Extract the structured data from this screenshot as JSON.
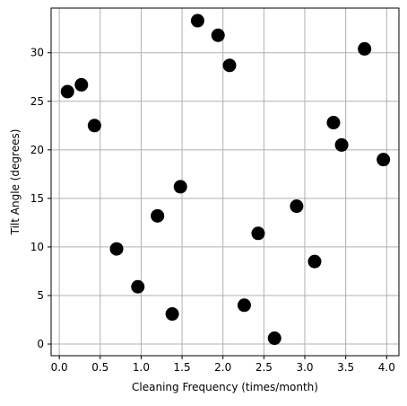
{
  "chart_data": {
    "type": "scatter",
    "title": "",
    "xlabel": "Cleaning Frequency (times/month)",
    "ylabel": "Tilt Angle (degrees)",
    "xlim": [
      -0.1,
      4.15
    ],
    "ylim": [
      -1.2,
      34.6
    ],
    "xticks": [
      0.0,
      0.5,
      1.0,
      1.5,
      2.0,
      2.5,
      3.0,
      3.5,
      4.0
    ],
    "xtick_labels": [
      "0.0",
      "0.5",
      "1.0",
      "1.5",
      "2.0",
      "2.5",
      "3.0",
      "3.5",
      "4.0"
    ],
    "yticks": [
      0,
      5,
      10,
      15,
      20,
      25,
      30
    ],
    "ytick_labels": [
      "0",
      "5",
      "10",
      "15",
      "20",
      "25",
      "30"
    ],
    "grid": true,
    "marker_color": "#000000",
    "points": [
      {
        "x": 0.1,
        "y": 26.0
      },
      {
        "x": 0.27,
        "y": 26.7
      },
      {
        "x": 0.43,
        "y": 22.5
      },
      {
        "x": 0.7,
        "y": 9.8
      },
      {
        "x": 0.96,
        "y": 5.9
      },
      {
        "x": 1.2,
        "y": 13.2
      },
      {
        "x": 1.38,
        "y": 3.1
      },
      {
        "x": 1.48,
        "y": 16.2
      },
      {
        "x": 1.69,
        "y": 33.3
      },
      {
        "x": 1.94,
        "y": 31.8
      },
      {
        "x": 2.08,
        "y": 28.7
      },
      {
        "x": 2.26,
        "y": 4.0
      },
      {
        "x": 2.43,
        "y": 11.4
      },
      {
        "x": 2.63,
        "y": 0.6
      },
      {
        "x": 2.9,
        "y": 14.2
      },
      {
        "x": 3.12,
        "y": 8.5
      },
      {
        "x": 3.35,
        "y": 22.8
      },
      {
        "x": 3.45,
        "y": 20.5
      },
      {
        "x": 3.73,
        "y": 30.4
      },
      {
        "x": 3.96,
        "y": 19.0
      }
    ]
  }
}
